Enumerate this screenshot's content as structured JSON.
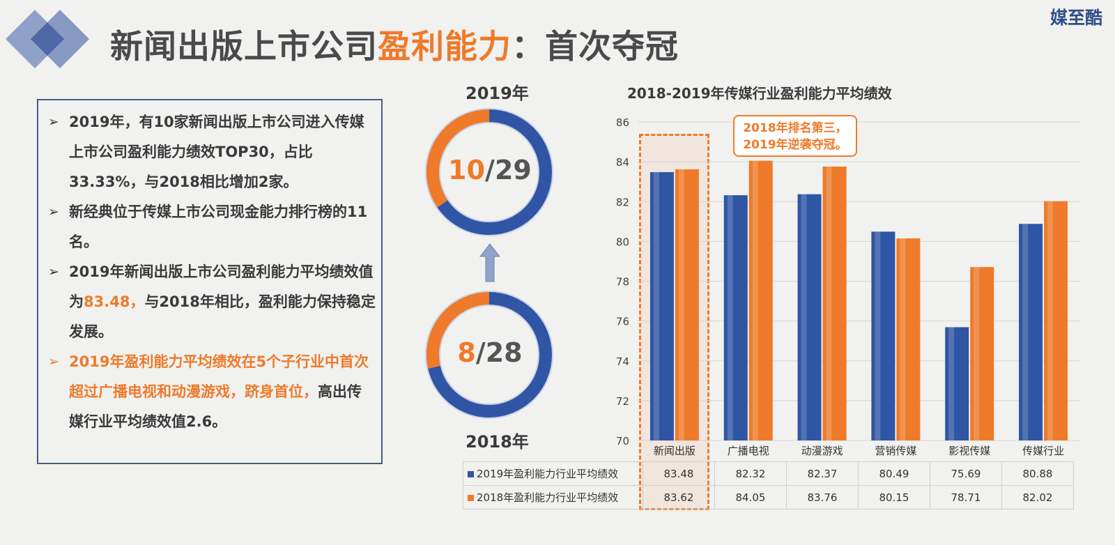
{
  "header": {
    "title_part1": "新闻出版上市公司",
    "title_highlight": "盈利能力",
    "title_part2": "：首次夺冠",
    "brand": "媒至酷"
  },
  "bullets": [
    {
      "text": "2019年，有10家新闻出版上市公司进入传媒上市公司盈利能力绩效TOP30，占比33.33%，与2018相比增加2家。"
    },
    {
      "text": "新经典位于传媒上市公司现金能力排行榜的11名。"
    },
    {
      "text_before": "2019年新闻出版上市公司盈利能力平均绩效值为",
      "text_highlight": "83.48，",
      "text_after": "与2018年相比，盈利能力保持稳定发展。"
    },
    {
      "text_highlight": "2019年盈利能力平均绩效在5个子行业中首次超过广播电视和动漫游戏，跻身首位，",
      "text_after": "高出传媒行业平均绩效值2.6。"
    }
  ],
  "donuts": {
    "top": {
      "year": "2019年",
      "num": "10",
      "sep": "/",
      "den": "29",
      "fraction": 0.3448
    },
    "bottom": {
      "year": "2018年",
      "num": "8",
      "sep": "/",
      "den": "28",
      "fraction": 0.2857
    },
    "colors": {
      "part": "#ee7a2a",
      "rest": "#2f55a4"
    }
  },
  "callout": {
    "line1": "2018年排名第三，",
    "line2": "2019年逆袭夺冠。"
  },
  "chart_data": {
    "type": "bar",
    "title": "2018-2019年传媒行业盈利能力平均绩效",
    "categories": [
      "新闻出版",
      "广播电视",
      "动漫游戏",
      "营销传媒",
      "影视传媒",
      "传媒行业"
    ],
    "series": [
      {
        "name": "2019年盈利能力行业平均绩效",
        "color": "#2f55a4",
        "values": [
          83.48,
          82.32,
          82.37,
          80.49,
          75.69,
          80.88
        ]
      },
      {
        "name": "2018年盈利能力行业平均绩效",
        "color": "#ee7a2a",
        "values": [
          83.62,
          84.05,
          83.76,
          80.15,
          78.71,
          82.02
        ]
      }
    ],
    "ylim": [
      70,
      86
    ],
    "yticks": [
      70,
      72,
      74,
      76,
      78,
      80,
      82,
      84,
      86
    ],
    "grid": true,
    "legend": "data-table-below"
  }
}
